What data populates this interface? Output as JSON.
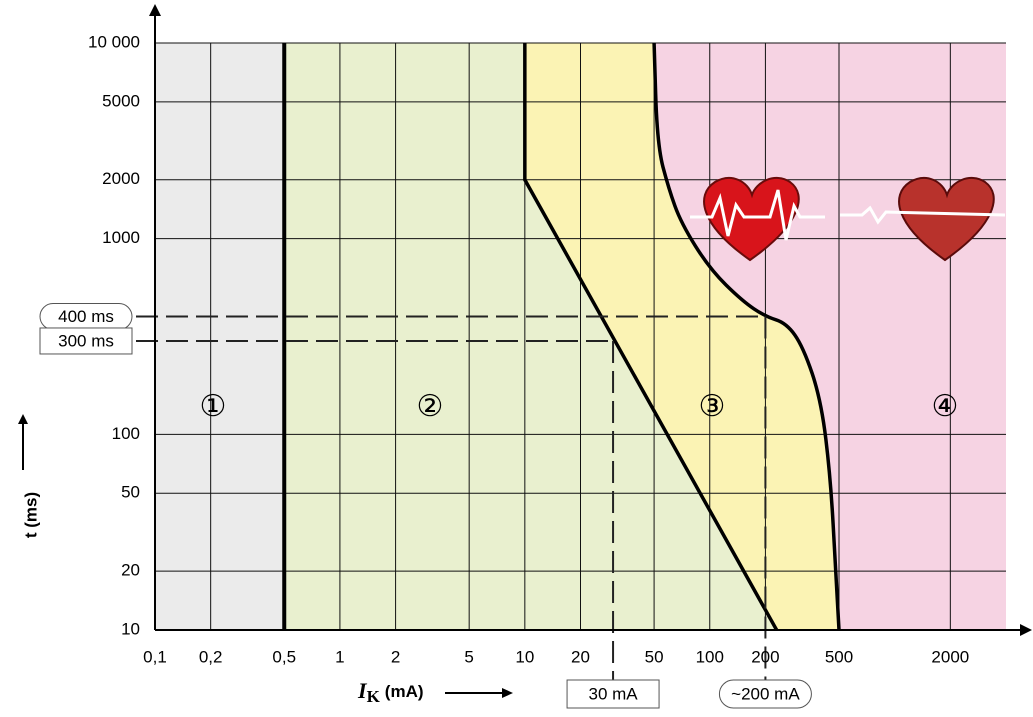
{
  "chart_data": {
    "type": "line",
    "x_label": {
      "symbol": "I",
      "subscript": "K",
      "unit": "(mA)"
    },
    "y_label": "t (ms)",
    "log_x": true,
    "log_y": true,
    "grid": true,
    "xlim": [
      0.1,
      4000
    ],
    "ylim": [
      10,
      10000
    ],
    "xticks": [
      {
        "value": 0.1,
        "label": "0,1"
      },
      {
        "value": 0.2,
        "label": "0,2"
      },
      {
        "value": 0.5,
        "label": "0,5"
      },
      1,
      2,
      5,
      10,
      20,
      50,
      100,
      200,
      500,
      2000
    ],
    "yticks": [
      10,
      20,
      50,
      100,
      1000,
      2000,
      5000,
      {
        "value": 10000,
        "label": "10 000"
      }
    ],
    "zones": [
      {
        "label": "①",
        "color": "#ebebeb"
      },
      {
        "label": "②",
        "color": "#e9f0cf"
      },
      {
        "label": "③",
        "color": "#fbf3b4"
      },
      {
        "label": "④",
        "color": "#f6d3e3"
      }
    ],
    "boundaries": [
      {
        "x": [
          0.5,
          0.5
        ],
        "y": [
          10,
          10000
        ]
      },
      {
        "x": [
          10,
          10,
          230
        ],
        "y": [
          10000,
          2000,
          10
        ]
      },
      {
        "x": [
          50,
          52,
          60,
          70,
          100,
          150,
          200,
          260,
          320,
          400,
          450,
          480,
          500
        ],
        "y": [
          10000,
          3000,
          1800,
          1200,
          700,
          480,
          400,
          370,
          280,
          150,
          60,
          20,
          10
        ]
      }
    ],
    "reference_lines": [
      {
        "label": "400 ms",
        "t": 400,
        "current": 200,
        "current_label": "~200 mA"
      },
      {
        "label": "300 ms",
        "t": 300,
        "current": 30,
        "current_label": "30 mA"
      }
    ]
  }
}
